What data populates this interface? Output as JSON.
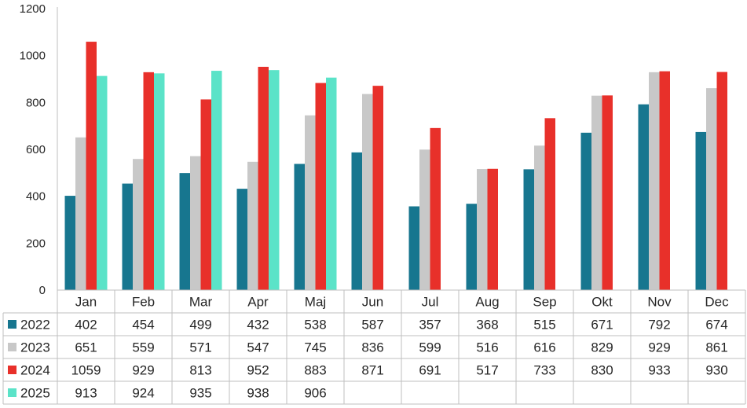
{
  "chart_data": {
    "type": "bar",
    "categories": [
      "Jan",
      "Feb",
      "Mar",
      "Apr",
      "Maj",
      "Jun",
      "Jul",
      "Aug",
      "Sep",
      "Okt",
      "Nov",
      "Dec"
    ],
    "series": [
      {
        "name": "2022",
        "color": "#17768f",
        "values": [
          402,
          454,
          499,
          432,
          538,
          587,
          357,
          368,
          515,
          671,
          792,
          674
        ]
      },
      {
        "name": "2023",
        "color": "#c8c8c8",
        "values": [
          651,
          559,
          571,
          547,
          745,
          836,
          599,
          516,
          616,
          829,
          929,
          861
        ]
      },
      {
        "name": "2024",
        "color": "#e8302a",
        "values": [
          1059,
          929,
          813,
          952,
          883,
          871,
          691,
          517,
          733,
          830,
          933,
          930
        ]
      },
      {
        "name": "2025",
        "color": "#5be3c8",
        "values": [
          913,
          924,
          935,
          938,
          906,
          null,
          null,
          null,
          null,
          null,
          null,
          null
        ]
      }
    ],
    "ylim": [
      0,
      1200
    ],
    "yticks": [
      0,
      200,
      400,
      600,
      800,
      1000,
      1200
    ],
    "grid": false,
    "legend": "data-table-left",
    "data_table": true
  }
}
